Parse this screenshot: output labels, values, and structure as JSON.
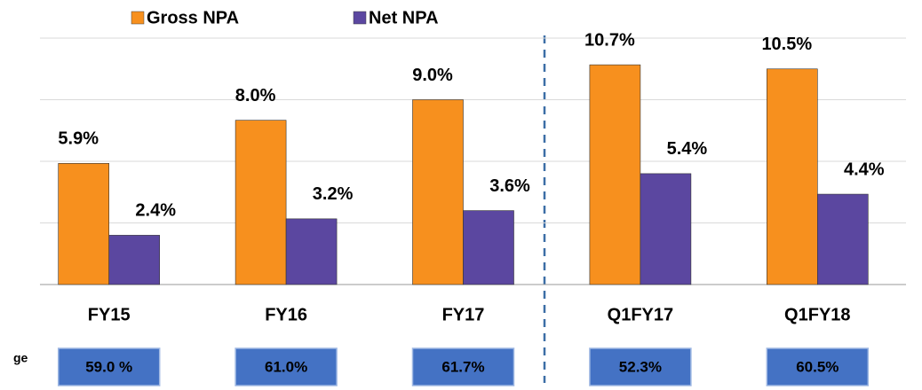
{
  "chart_data": {
    "type": "bar",
    "categories": [
      "FY15",
      "FY16",
      "FY17",
      "Q1FY17",
      "Q1FY18"
    ],
    "series": [
      {
        "name": "Gross NPA",
        "color": "#f7901e",
        "values": [
          5.9,
          8.0,
          9.0,
          10.7,
          10.5
        ],
        "value_labels": [
          "5.9%",
          "8.0%",
          "9.0%",
          "10.7%",
          "10.5%"
        ]
      },
      {
        "name": "Net NPA",
        "color": "#5b47a0",
        "values": [
          2.4,
          3.2,
          3.6,
          5.4,
          4.4
        ],
        "value_labels": [
          "2.4%",
          "3.2%",
          "3.6%",
          "5.4%",
          "4.4%"
        ]
      }
    ],
    "ylim": [
      0,
      12
    ],
    "yticks": [
      0,
      3,
      6,
      9,
      12
    ],
    "grid": true,
    "legend": "top",
    "coverage_label": "ge",
    "coverage": [
      "59.0 %",
      "61.0%",
      "61.7%",
      "52.3%",
      "60.5%"
    ]
  }
}
